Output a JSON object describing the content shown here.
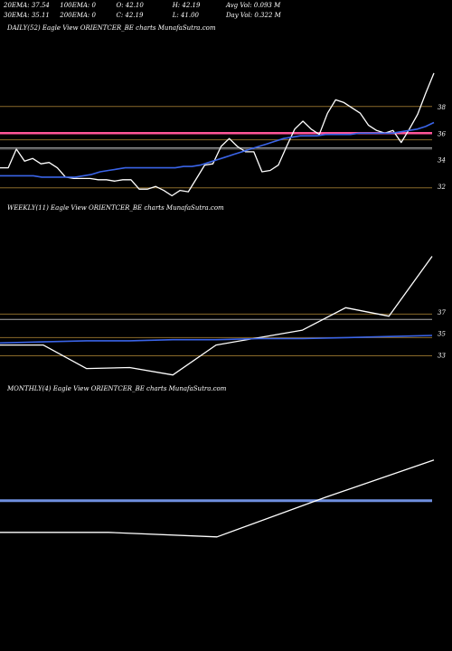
{
  "header": {
    "row1": [
      "20EMA: 37.54",
      "100EMA: 0",
      "O: 42.10",
      "H: 42.19",
      "Avg Vol: 0.093  M"
    ],
    "row2": [
      "30EMA: 35.11",
      "200EMA: 0",
      "C: 42.19",
      "L: 41.00",
      "Day Vol: 0.322  M"
    ]
  },
  "chart_data": [
    {
      "type": "line",
      "title": "DAILY(52) Eagle   View  ORIENTCER_BE charts MunafaSutra.com",
      "ylim": [
        31.2,
        40.7
      ],
      "y_ticks": [
        {
          "value": 38,
          "label": "38"
        },
        {
          "value": 36,
          "label": "36"
        },
        {
          "value": 34,
          "label": "34"
        },
        {
          "value": 32,
          "label": "32"
        }
      ],
      "hlines": [
        {
          "value": 38.0,
          "color": "#8a6a2a"
        },
        {
          "value": 36.0,
          "color": "#ff5599"
        },
        {
          "value": 35.5,
          "color": "#8a6a2a"
        },
        {
          "value": 34.9,
          "color": "#999999"
        },
        {
          "value": 34.8,
          "color": "#777777"
        },
        {
          "value": 31.9,
          "color": "#8a6a2a"
        }
      ],
      "series": [
        {
          "color": "#ffffff",
          "values": [
            33.4,
            33.4,
            34.8,
            33.9,
            34.1,
            33.7,
            33.8,
            33.4,
            32.7,
            32.6,
            32.6,
            32.6,
            32.5,
            32.5,
            32.4,
            32.5,
            32.5,
            31.8,
            31.8,
            32.0,
            31.7,
            31.3,
            31.7,
            31.6,
            32.6,
            33.6,
            33.7,
            35.0,
            35.6,
            35.0,
            34.6,
            34.6,
            33.1,
            33.2,
            33.6,
            35.0,
            36.3,
            36.9,
            36.3,
            35.9,
            37.5,
            38.5,
            38.3,
            37.9,
            37.5,
            36.6,
            36.2,
            36.0,
            36.2,
            35.3,
            36.3,
            37.4,
            39.0,
            40.5
          ]
        },
        {
          "color": "#3a64e8",
          "values": [
            32.8,
            32.8,
            32.8,
            32.8,
            32.8,
            32.7,
            32.7,
            32.7,
            32.7,
            32.7,
            32.8,
            32.9,
            33.1,
            33.2,
            33.3,
            33.4,
            33.4,
            33.4,
            33.4,
            33.4,
            33.4,
            33.4,
            33.5,
            33.5,
            33.6,
            33.8,
            34.0,
            34.2,
            34.4,
            34.6,
            34.8,
            35.0,
            35.2,
            35.4,
            35.6,
            35.7,
            35.8,
            35.8,
            35.8,
            35.9,
            35.9,
            35.9,
            35.9,
            36.0,
            36.0,
            36.0,
            36.0,
            36.0,
            36.1,
            36.2,
            36.3,
            36.5,
            36.8
          ]
        }
      ]
    },
    {
      "type": "line",
      "title": "WEEKLY(11) Eagle   View  ORIENTCER_BE charts MunafaSutra.com",
      "ylim": [
        31.5,
        42.5
      ],
      "y_ticks": [
        {
          "value": 37,
          "label": "37"
        },
        {
          "value": 35,
          "label": "35"
        },
        {
          "value": 33,
          "label": "33"
        }
      ],
      "hlines": [
        {
          "value": 36.8,
          "color": "#8a6a2a"
        },
        {
          "value": 36.3,
          "color": "#aaaaaa"
        },
        {
          "value": 34.6,
          "color": "#8a6a2a"
        },
        {
          "value": 32.9,
          "color": "#8a6a2a"
        }
      ],
      "series": [
        {
          "color": "#ffffff",
          "values": [
            33.9,
            33.9,
            31.7,
            31.8,
            31.1,
            33.9,
            34.6,
            35.3,
            37.4,
            36.6,
            42.2
          ]
        },
        {
          "color": "#3a64e8",
          "values": [
            34.1,
            34.2,
            34.3,
            34.3,
            34.4,
            34.4,
            34.5,
            34.5,
            34.6,
            34.7,
            34.8
          ]
        }
      ]
    },
    {
      "type": "line",
      "title": "MONTHLY(4) Eagle   View  ORIENTCER_BE charts MunafaSutra.com",
      "ylim": [
        32.0,
        44.0
      ],
      "y_ticks": [],
      "hlines": [
        {
          "value": 37.3,
          "color": "#6f8fdf"
        }
      ],
      "series": [
        {
          "color": "#ffffff",
          "values": [
            34.5,
            34.5,
            34.1,
            37.6,
            40.9
          ]
        }
      ]
    }
  ]
}
